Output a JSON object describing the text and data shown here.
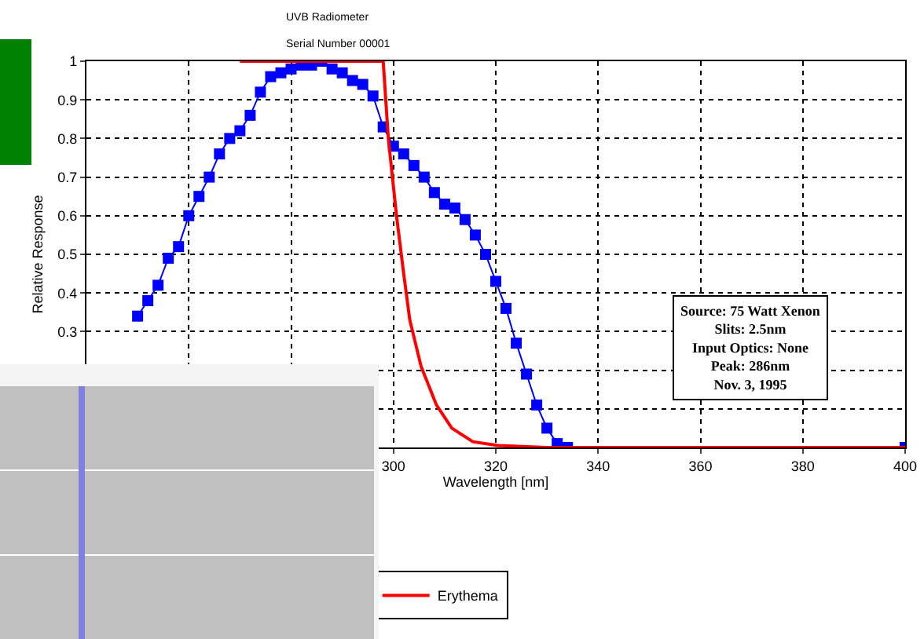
{
  "chart_data": {
    "type": "line",
    "title": "UVB Radiometer",
    "subtitle": "Serial Number 00001",
    "xlabel": "Wavelength [nm]",
    "ylabel": "Relative Response",
    "xlim": [
      240,
      400
    ],
    "xticks": [
      {
        "value": 240,
        "label": null
      },
      {
        "value": 260,
        "label": null
      },
      {
        "value": 280,
        "label": null
      },
      300,
      320,
      340,
      360,
      380,
      400
    ],
    "ylim": [
      0,
      1
    ],
    "yticks": [
      {
        "value": 0,
        "label": null
      },
      {
        "value": 0.1,
        "label": null
      },
      {
        "value": 0.2,
        "label": null
      },
      0.3,
      0.4,
      0.5,
      0.6,
      0.7,
      0.8,
      0.9,
      1
    ],
    "grid": true,
    "legend": "bottom",
    "annotations": [
      "Source: 75 Watt Xenon",
      "Slits: 2.5nm",
      "Input Optics: None",
      "Peak: 286nm",
      "Nov. 3, 1995"
    ],
    "series": [
      {
        "color": "#0000ff",
        "marker": "square",
        "x": [
          250,
          252,
          254,
          256,
          258,
          260,
          262,
          264,
          266,
          268,
          270,
          272,
          274,
          276,
          278,
          280,
          282,
          284,
          286,
          288,
          290,
          292,
          294,
          296,
          298,
          300,
          302,
          304,
          306,
          308,
          310,
          312,
          314,
          316,
          318,
          320,
          322,
          324,
          326,
          328,
          330,
          332,
          334,
          400
        ],
        "values": [
          0.34,
          0.38,
          0.42,
          0.49,
          0.52,
          0.6,
          0.65,
          0.7,
          0.76,
          0.8,
          0.82,
          0.86,
          0.92,
          0.96,
          0.97,
          0.98,
          0.99,
          0.99,
          1,
          0.98,
          0.97,
          0.95,
          0.94,
          0.91,
          0.83,
          0.78,
          0.76,
          0.73,
          0.7,
          0.66,
          0.63,
          0.62,
          0.59,
          0.55,
          0.5,
          0.43,
          0.36,
          0.27,
          0.19,
          0.11,
          0.05,
          0.01,
          0,
          0
        ]
      },
      {
        "name": "Erythema",
        "color": "#ff0000",
        "marker": "none",
        "x": [
          270,
          298,
          299,
          300.6,
          302,
          303.2,
          305.4,
          308.4,
          311.4,
          315.5,
          320.4,
          330,
          400
        ],
        "values": [
          1,
          1,
          0.8,
          0.6,
          0.45,
          0.33,
          0.21,
          0.11,
          0.05,
          0.015,
          0.005,
          0,
          0
        ]
      }
    ]
  }
}
